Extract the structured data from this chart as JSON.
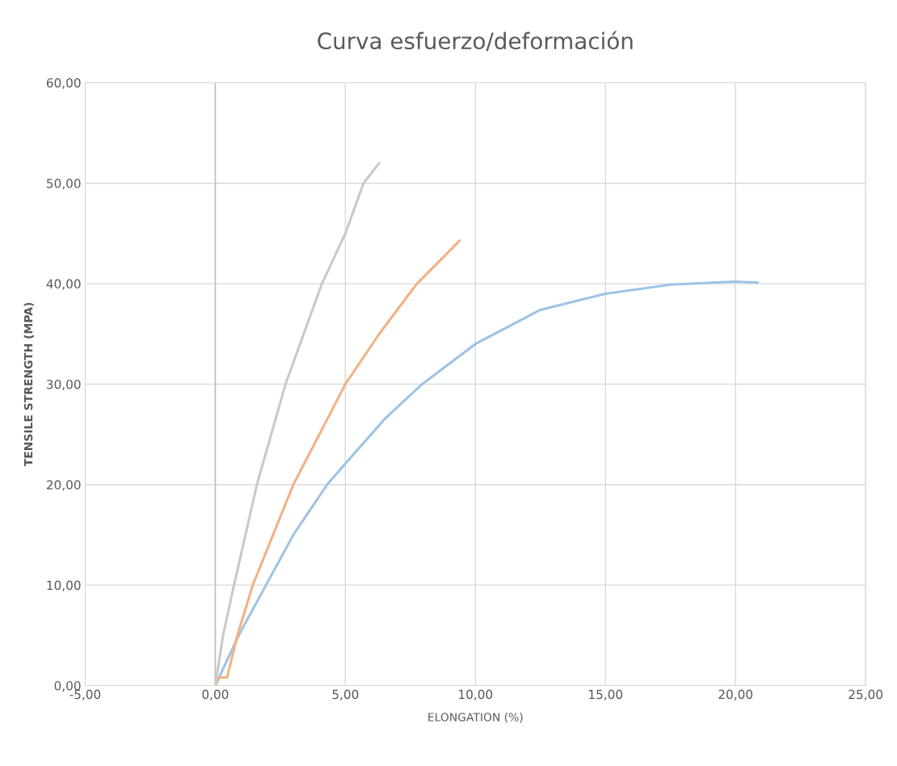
{
  "chart_data": {
    "type": "line",
    "title": "Curva esfuerzo/deformación",
    "xlabel": "ELONGATION (%)",
    "ylabel": "TENSILE STRENGTH (MPA)",
    "series": [
      {
        "color": "#9dc3e6",
        "x": [
          0,
          0.9,
          1.95,
          3.0,
          4.3,
          5.0,
          6.5,
          7.95,
          10,
          12.5,
          15,
          17.5,
          20,
          20.85
        ],
        "values": [
          0,
          5,
          10,
          15,
          20,
          22.1,
          26.5,
          30,
          34.0,
          37.4,
          39.0,
          39.9,
          40.2,
          40.1
        ]
      },
      {
        "color": "#f4b183",
        "x": [
          0,
          0.15,
          0.45,
          0.85,
          1.44,
          3.0,
          5.0,
          6.3,
          7.75,
          9.4
        ],
        "values": [
          0,
          0.8,
          0.8,
          5,
          10,
          20,
          30,
          35,
          40,
          44.3
        ]
      },
      {
        "color": "#c9c9c9",
        "x": [
          0,
          0.3,
          0.72,
          1.6,
          2.7,
          4.1,
          5.0,
          5.7,
          6.3
        ],
        "values": [
          0,
          5,
          10,
          20,
          30,
          40,
          45,
          50,
          52.0
        ]
      }
    ],
    "xlim": [
      -5,
      25
    ],
    "ylim": [
      0,
      60
    ],
    "xticks": [
      {
        "value": -5,
        "label": "-5,00"
      },
      {
        "value": 0,
        "label": "0,00"
      },
      {
        "value": 5,
        "label": "5,00"
      },
      {
        "value": 10,
        "label": "10,00"
      },
      {
        "value": 15,
        "label": "15,00"
      },
      {
        "value": 20,
        "label": "20,00"
      },
      {
        "value": 25,
        "label": "25,00"
      }
    ],
    "yticks": [
      {
        "value": 0,
        "label": "0,00"
      },
      {
        "value": 10,
        "label": "10,00"
      },
      {
        "value": 20,
        "label": "20,00"
      },
      {
        "value": 30,
        "label": "30,00"
      },
      {
        "value": 40,
        "label": "40,00"
      },
      {
        "value": 50,
        "label": "50,00"
      },
      {
        "value": 60,
        "label": "60,00"
      }
    ],
    "grid": true,
    "legend": false,
    "marker": "none",
    "line_style": "solid"
  }
}
